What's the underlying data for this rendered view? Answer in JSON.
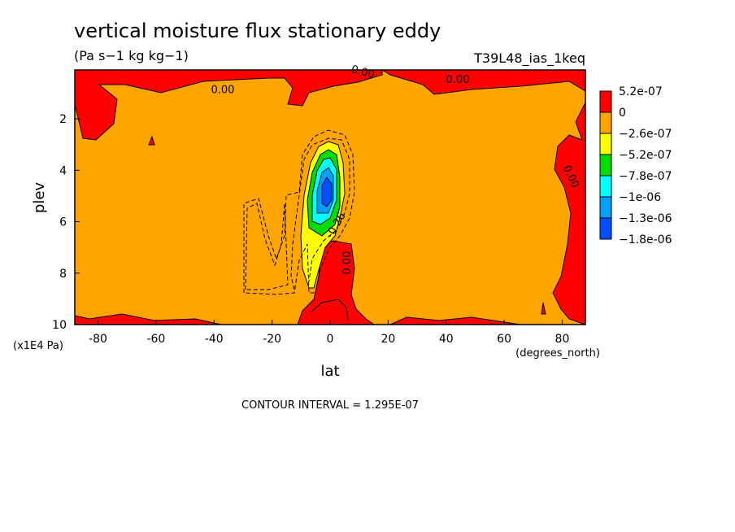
{
  "chart_data": {
    "type": "contour",
    "title": "vertical moisture flux stationary eddy",
    "units": "(Pa s−1 kg kg−1)",
    "run_label": "T39L48_ias_1keq",
    "xlabel": "lat",
    "xunits": "(degrees_north)",
    "ylabel": "plev",
    "yunits": "(x1E4 Pa)",
    "footer": "CONTOUR INTERVAL = 1.295E-07",
    "xlim": [
      -88,
      88
    ],
    "ylim": [
      10,
      0.1
    ],
    "x_ticks": [
      -80,
      -60,
      -40,
      -20,
      0,
      20,
      40,
      60,
      80
    ],
    "y_ticks": [
      2,
      4,
      6,
      8,
      10
    ],
    "contour_labels": [
      {
        "text": "0.00",
        "x": -37,
        "y": 1.0,
        "rot": 0
      },
      {
        "text": "0.00",
        "x": 11,
        "y": 0.3,
        "rot": 15
      },
      {
        "text": "0.00",
        "x": 44,
        "y": 0.6,
        "rot": 0
      },
      {
        "text": "0.00",
        "x": 82,
        "y": 4.3,
        "rot": 65
      },
      {
        "text": "0.00",
        "x": 7,
        "y": 7.6,
        "rot": -90
      },
      {
        "text": "-0.26",
        "x": 3,
        "y": 6.2,
        "rot": -60
      }
    ],
    "legend": {
      "placement": "right",
      "entries": [
        {
          "label": "5.2e-07",
          "color": "#ff0000"
        },
        {
          "label": "0",
          "color": "#ffa500"
        },
        {
          "label": "−2.6e-07",
          "color": "#ffff00"
        },
        {
          "label": "−5.2e-07",
          "color": "#00dd00"
        },
        {
          "label": "−7.8e-07",
          "color": "#00ffff"
        },
        {
          "label": "−1e-06",
          "color": "#00a0ff"
        },
        {
          "label": "−1.3e-06",
          "color": "#0050ff"
        },
        {
          "label": "−1.8e-06",
          "color": null
        }
      ]
    },
    "field_colors": {
      "positive": "#ff0000",
      "zero_band": "#ffa500",
      "neg1": "#ffff00",
      "neg2": "#00dd00",
      "neg3": "#00ffff",
      "neg4": "#00a0ff",
      "neg5": "#0050ff"
    }
  }
}
